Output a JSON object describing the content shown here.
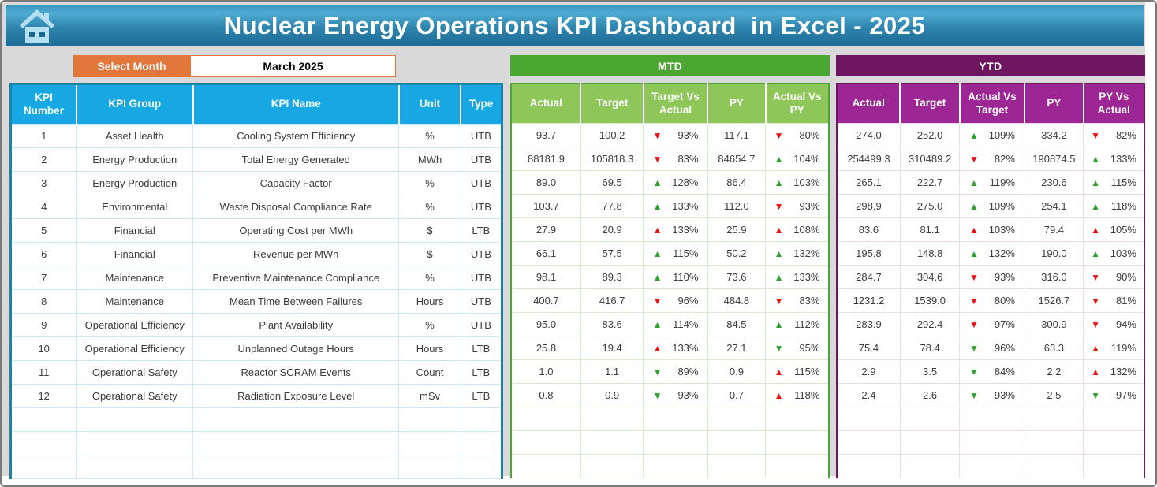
{
  "header": {
    "title": "Nuclear Energy Operations KPI Dashboard  in Excel - 2025"
  },
  "month_selector": {
    "label": "Select Month",
    "value": "March 2025"
  },
  "kpi": {
    "headers": [
      "KPI Number",
      "KPI Group",
      "KPI Name",
      "Unit",
      "Type"
    ],
    "empty_rows": 3
  },
  "mtd": {
    "band_label": "MTD",
    "headers": [
      "Actual",
      "Target",
      "Target Vs Actual",
      "PY",
      "Actual Vs PY"
    ]
  },
  "ytd": {
    "band_label": "YTD",
    "headers": [
      "Actual",
      "Target",
      "Actual Vs Target",
      "PY",
      "PY Vs Actual"
    ]
  },
  "rows": [
    {
      "number": "1",
      "group": "Asset Health",
      "name": "Cooling System Efficiency",
      "unit": "%",
      "type": "UTB",
      "mtd": {
        "actual": "93.7",
        "target": "100.2",
        "target_vs_actual": {
          "dir": "down",
          "color": "red",
          "value": "93%"
        },
        "py": "117.1",
        "actual_vs_py": {
          "dir": "down",
          "color": "red",
          "value": "80%"
        }
      },
      "ytd": {
        "actual": "274.0",
        "target": "252.0",
        "actual_vs_target": {
          "dir": "up",
          "color": "green",
          "value": "109%"
        },
        "py": "334.2",
        "py_vs_actual": {
          "dir": "down",
          "color": "red",
          "value": "82%"
        }
      }
    },
    {
      "number": "2",
      "group": "Energy Production",
      "name": "Total Energy Generated",
      "unit": "MWh",
      "type": "UTB",
      "mtd": {
        "actual": "88181.9",
        "target": "105818.3",
        "target_vs_actual": {
          "dir": "down",
          "color": "red",
          "value": "83%"
        },
        "py": "84654.7",
        "actual_vs_py": {
          "dir": "up",
          "color": "green",
          "value": "104%"
        }
      },
      "ytd": {
        "actual": "254499.3",
        "target": "310489.2",
        "actual_vs_target": {
          "dir": "down",
          "color": "red",
          "value": "82%"
        },
        "py": "190874.5",
        "py_vs_actual": {
          "dir": "up",
          "color": "green",
          "value": "133%"
        }
      }
    },
    {
      "number": "3",
      "group": "Energy Production",
      "name": "Capacity Factor",
      "unit": "%",
      "type": "UTB",
      "mtd": {
        "actual": "89.0",
        "target": "69.5",
        "target_vs_actual": {
          "dir": "up",
          "color": "green",
          "value": "128%"
        },
        "py": "86.4",
        "actual_vs_py": {
          "dir": "up",
          "color": "green",
          "value": "103%"
        }
      },
      "ytd": {
        "actual": "265.1",
        "target": "222.7",
        "actual_vs_target": {
          "dir": "up",
          "color": "green",
          "value": "119%"
        },
        "py": "230.6",
        "py_vs_actual": {
          "dir": "up",
          "color": "green",
          "value": "115%"
        }
      }
    },
    {
      "number": "4",
      "group": "Environmental",
      "name": "Waste Disposal Compliance Rate",
      "unit": "%",
      "type": "UTB",
      "mtd": {
        "actual": "103.7",
        "target": "77.8",
        "target_vs_actual": {
          "dir": "up",
          "color": "green",
          "value": "133%"
        },
        "py": "112.0",
        "actual_vs_py": {
          "dir": "down",
          "color": "red",
          "value": "93%"
        }
      },
      "ytd": {
        "actual": "298.9",
        "target": "275.0",
        "actual_vs_target": {
          "dir": "up",
          "color": "green",
          "value": "109%"
        },
        "py": "254.1",
        "py_vs_actual": {
          "dir": "up",
          "color": "green",
          "value": "118%"
        }
      }
    },
    {
      "number": "5",
      "group": "Financial",
      "name": "Operating Cost per MWh",
      "unit": "$",
      "type": "LTB",
      "mtd": {
        "actual": "27.9",
        "target": "20.9",
        "target_vs_actual": {
          "dir": "up",
          "color": "red",
          "value": "133%"
        },
        "py": "25.9",
        "actual_vs_py": {
          "dir": "up",
          "color": "red",
          "value": "108%"
        }
      },
      "ytd": {
        "actual": "83.6",
        "target": "81.1",
        "actual_vs_target": {
          "dir": "up",
          "color": "red",
          "value": "103%"
        },
        "py": "79.4",
        "py_vs_actual": {
          "dir": "up",
          "color": "red",
          "value": "105%"
        }
      }
    },
    {
      "number": "6",
      "group": "Financial",
      "name": "Revenue per MWh",
      "unit": "$",
      "type": "UTB",
      "mtd": {
        "actual": "66.1",
        "target": "57.5",
        "target_vs_actual": {
          "dir": "up",
          "color": "green",
          "value": "115%"
        },
        "py": "50.2",
        "actual_vs_py": {
          "dir": "up",
          "color": "green",
          "value": "132%"
        }
      },
      "ytd": {
        "actual": "195.8",
        "target": "148.8",
        "actual_vs_target": {
          "dir": "up",
          "color": "green",
          "value": "132%"
        },
        "py": "190.0",
        "py_vs_actual": {
          "dir": "up",
          "color": "green",
          "value": "103%"
        }
      }
    },
    {
      "number": "7",
      "group": "Maintenance",
      "name": "Preventive Maintenance Compliance",
      "unit": "%",
      "type": "UTB",
      "mtd": {
        "actual": "98.1",
        "target": "89.3",
        "target_vs_actual": {
          "dir": "up",
          "color": "green",
          "value": "110%"
        },
        "py": "73.6",
        "actual_vs_py": {
          "dir": "up",
          "color": "green",
          "value": "133%"
        }
      },
      "ytd": {
        "actual": "284.7",
        "target": "304.6",
        "actual_vs_target": {
          "dir": "down",
          "color": "red",
          "value": "93%"
        },
        "py": "316.0",
        "py_vs_actual": {
          "dir": "down",
          "color": "red",
          "value": "90%"
        }
      }
    },
    {
      "number": "8",
      "group": "Maintenance",
      "name": "Mean Time Between Failures",
      "unit": "Hours",
      "type": "UTB",
      "mtd": {
        "actual": "400.7",
        "target": "416.7",
        "target_vs_actual": {
          "dir": "down",
          "color": "red",
          "value": "96%"
        },
        "py": "484.8",
        "actual_vs_py": {
          "dir": "down",
          "color": "red",
          "value": "83%"
        }
      },
      "ytd": {
        "actual": "1231.2",
        "target": "1539.0",
        "actual_vs_target": {
          "dir": "down",
          "color": "red",
          "value": "80%"
        },
        "py": "1526.7",
        "py_vs_actual": {
          "dir": "down",
          "color": "red",
          "value": "81%"
        }
      }
    },
    {
      "number": "9",
      "group": "Operational Efficiency",
      "name": "Plant Availability",
      "unit": "%",
      "type": "UTB",
      "mtd": {
        "actual": "95.0",
        "target": "83.6",
        "target_vs_actual": {
          "dir": "up",
          "color": "green",
          "value": "114%"
        },
        "py": "84.5",
        "actual_vs_py": {
          "dir": "up",
          "color": "green",
          "value": "112%"
        }
      },
      "ytd": {
        "actual": "283.9",
        "target": "292.4",
        "actual_vs_target": {
          "dir": "down",
          "color": "red",
          "value": "97%"
        },
        "py": "300.9",
        "py_vs_actual": {
          "dir": "down",
          "color": "red",
          "value": "94%"
        }
      }
    },
    {
      "number": "10",
      "group": "Operational Efficiency",
      "name": "Unplanned Outage Hours",
      "unit": "Hours",
      "type": "LTB",
      "mtd": {
        "actual": "25.8",
        "target": "19.4",
        "target_vs_actual": {
          "dir": "up",
          "color": "red",
          "value": "133%"
        },
        "py": "27.1",
        "actual_vs_py": {
          "dir": "down",
          "color": "green",
          "value": "95%"
        }
      },
      "ytd": {
        "actual": "75.4",
        "target": "78.4",
        "actual_vs_target": {
          "dir": "down",
          "color": "green",
          "value": "96%"
        },
        "py": "63.3",
        "py_vs_actual": {
          "dir": "up",
          "color": "red",
          "value": "119%"
        }
      }
    },
    {
      "number": "11",
      "group": "Operational Safety",
      "name": "Reactor SCRAM Events",
      "unit": "Count",
      "type": "LTB",
      "mtd": {
        "actual": "1.0",
        "target": "1.1",
        "target_vs_actual": {
          "dir": "down",
          "color": "green",
          "value": "89%"
        },
        "py": "0.9",
        "actual_vs_py": {
          "dir": "up",
          "color": "red",
          "value": "115%"
        }
      },
      "ytd": {
        "actual": "2.9",
        "target": "3.5",
        "actual_vs_target": {
          "dir": "down",
          "color": "green",
          "value": "84%"
        },
        "py": "2.2",
        "py_vs_actual": {
          "dir": "up",
          "color": "red",
          "value": "132%"
        }
      }
    },
    {
      "number": "12",
      "group": "Operational Safety",
      "name": "Radiation Exposure Level",
      "unit": "mSv",
      "type": "LTB",
      "mtd": {
        "actual": "0.8",
        "target": "0.9",
        "target_vs_actual": {
          "dir": "down",
          "color": "green",
          "value": "93%"
        },
        "py": "0.7",
        "actual_vs_py": {
          "dir": "up",
          "color": "red",
          "value": "118%"
        }
      },
      "ytd": {
        "actual": "2.4",
        "target": "2.6",
        "actual_vs_target": {
          "dir": "down",
          "color": "green",
          "value": "93%"
        },
        "py": "2.5",
        "py_vs_actual": {
          "dir": "down",
          "color": "green",
          "value": "97%"
        }
      }
    }
  ],
  "colors": {
    "banner_blue_top": "#4fabd3",
    "banner_blue_bottom": "#1b6a95",
    "select_month_orange": "#e2773b",
    "kpi_header_blue": "#17a8e3",
    "kpi_border_teal": "#1d84a8",
    "mtd_band_green": "#4ca632",
    "mtd_header_green": "#8ec659",
    "ytd_band_purple": "#6e1760",
    "ytd_header_purple": "#9c2693",
    "arrow_red": "#ee1111",
    "arrow_green": "#2fa12f"
  }
}
